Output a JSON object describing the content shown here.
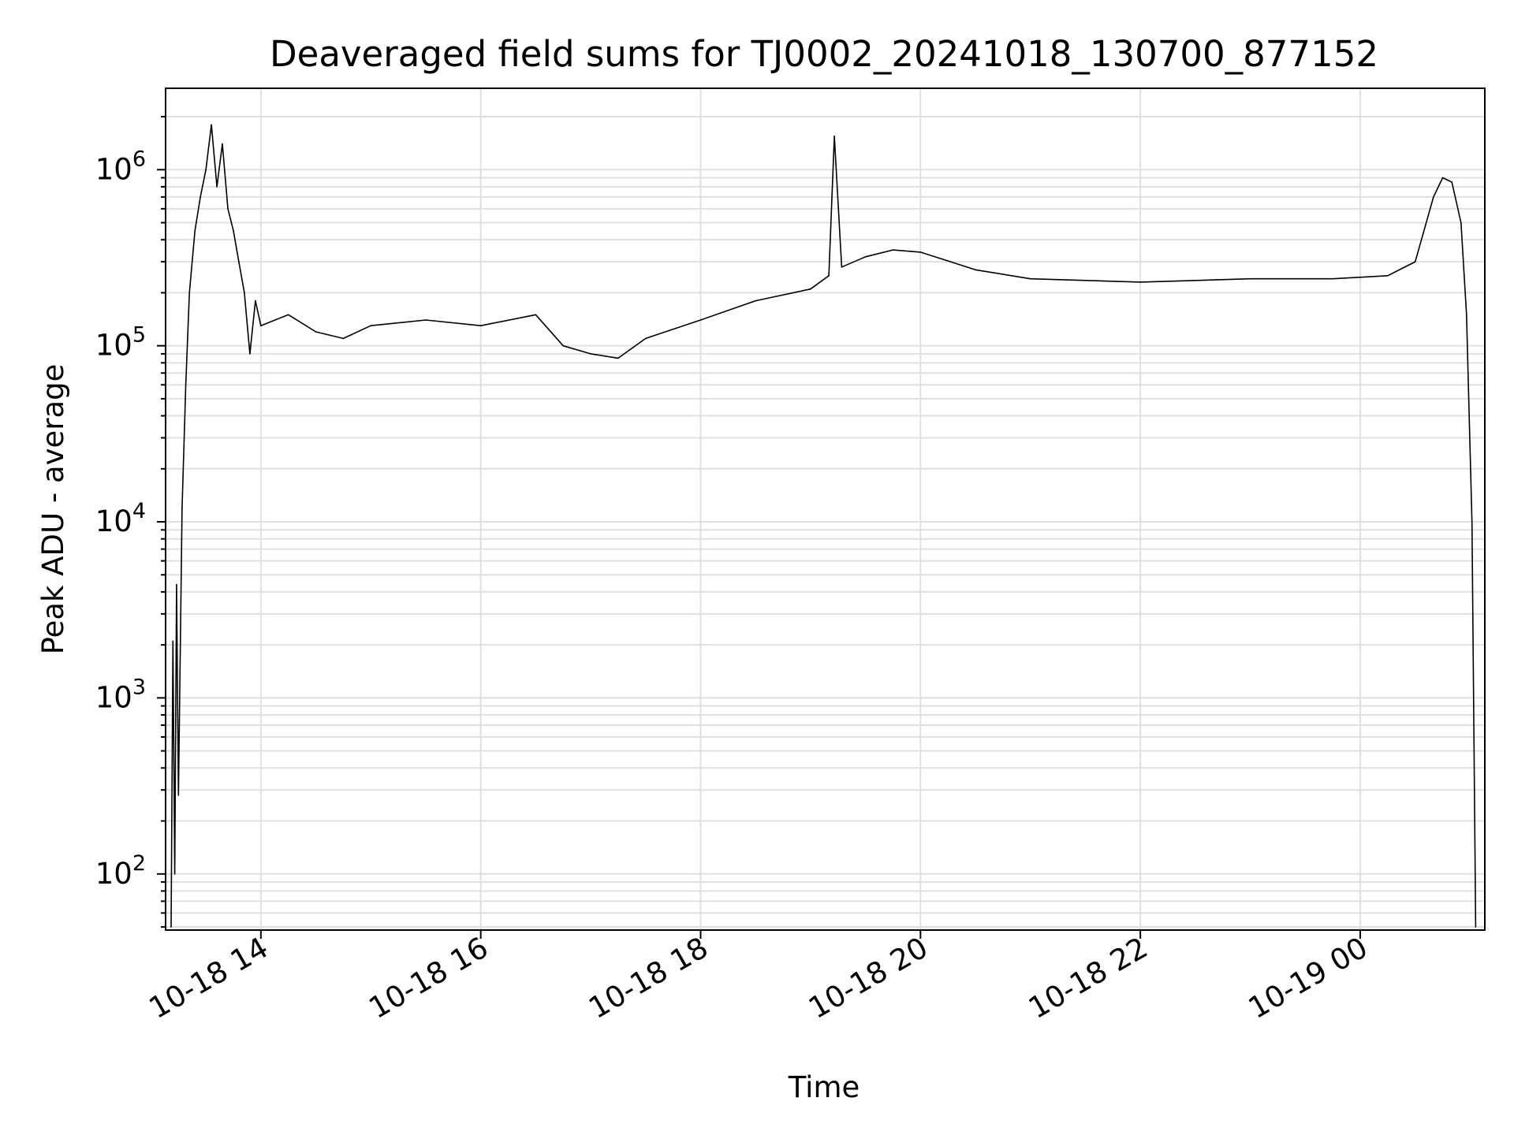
{
  "chart_data": {
    "type": "line",
    "title": "Deaveraged field sums for TJ0002_20241018_130700_877152",
    "xlabel": "Time",
    "ylabel": "Peak ADU - average",
    "yscale": "log",
    "ylim": [
      48,
      2900000
    ],
    "xlim": [
      "2024-10-18 13:08",
      "2024-10-19 01:08"
    ],
    "grid": true,
    "line_color": "#000000",
    "x_ticks": [
      {
        "value": "2024-10-18 14:00",
        "label": "10-18 14"
      },
      {
        "value": "2024-10-18 16:00",
        "label": "10-18 16"
      },
      {
        "value": "2024-10-18 18:00",
        "label": "10-18 18"
      },
      {
        "value": "2024-10-18 20:00",
        "label": "10-18 20"
      },
      {
        "value": "2024-10-18 22:00",
        "label": "10-18 22"
      },
      {
        "value": "2024-10-19 00:00",
        "label": "10-19 00"
      }
    ],
    "y_ticks": [
      {
        "value": 100,
        "base": "10",
        "exp": "2"
      },
      {
        "value": 1000,
        "base": "10",
        "exp": "3"
      },
      {
        "value": 10000,
        "base": "10",
        "exp": "4"
      },
      {
        "value": 100000,
        "base": "10",
        "exp": "5"
      },
      {
        "value": 1000000,
        "base": "10",
        "exp": "6"
      }
    ],
    "series": [
      {
        "values": [
          [
            "2024-10-18 13:11",
            50
          ],
          [
            "2024-10-18 13:12",
            2100
          ],
          [
            "2024-10-18 13:13",
            100
          ],
          [
            "2024-10-18 13:14",
            4400
          ],
          [
            "2024-10-18 13:15",
            280
          ],
          [
            "2024-10-18 13:17",
            12000
          ],
          [
            "2024-10-18 13:19",
            60000
          ],
          [
            "2024-10-18 13:21",
            200000
          ],
          [
            "2024-10-18 13:24",
            450000
          ],
          [
            "2024-10-18 13:27",
            700000
          ],
          [
            "2024-10-18 13:30",
            1000000
          ],
          [
            "2024-10-18 13:33",
            1800000
          ],
          [
            "2024-10-18 13:36",
            800000
          ],
          [
            "2024-10-18 13:39",
            1400000
          ],
          [
            "2024-10-18 13:42",
            600000
          ],
          [
            "2024-10-18 13:45",
            450000
          ],
          [
            "2024-10-18 13:48",
            300000
          ],
          [
            "2024-10-18 13:51",
            200000
          ],
          [
            "2024-10-18 13:54",
            90000
          ],
          [
            "2024-10-18 13:57",
            180000
          ],
          [
            "2024-10-18 14:00",
            130000
          ],
          [
            "2024-10-18 14:15",
            150000
          ],
          [
            "2024-10-18 14:30",
            120000
          ],
          [
            "2024-10-18 14:45",
            110000
          ],
          [
            "2024-10-18 15:00",
            130000
          ],
          [
            "2024-10-18 15:30",
            140000
          ],
          [
            "2024-10-18 16:00",
            130000
          ],
          [
            "2024-10-18 16:30",
            150000
          ],
          [
            "2024-10-18 16:45",
            100000
          ],
          [
            "2024-10-18 17:00",
            90000
          ],
          [
            "2024-10-18 17:15",
            85000
          ],
          [
            "2024-10-18 17:30",
            110000
          ],
          [
            "2024-10-18 18:00",
            140000
          ],
          [
            "2024-10-18 18:30",
            180000
          ],
          [
            "2024-10-18 19:00",
            210000
          ],
          [
            "2024-10-18 19:10",
            250000
          ],
          [
            "2024-10-18 19:13",
            1550000
          ],
          [
            "2024-10-18 19:17",
            280000
          ],
          [
            "2024-10-18 19:30",
            320000
          ],
          [
            "2024-10-18 19:45",
            350000
          ],
          [
            "2024-10-18 20:00",
            340000
          ],
          [
            "2024-10-18 20:30",
            270000
          ],
          [
            "2024-10-18 21:00",
            240000
          ],
          [
            "2024-10-18 22:00",
            230000
          ],
          [
            "2024-10-18 23:00",
            240000
          ],
          [
            "2024-10-18 23:45",
            240000
          ],
          [
            "2024-10-19 00:15",
            250000
          ],
          [
            "2024-10-19 00:30",
            300000
          ],
          [
            "2024-10-19 00:40",
            700000
          ],
          [
            "2024-10-19 00:45",
            900000
          ],
          [
            "2024-10-19 00:50",
            850000
          ],
          [
            "2024-10-19 00:55",
            500000
          ],
          [
            "2024-10-19 00:58",
            150000
          ],
          [
            "2024-10-19 01:01",
            10000
          ],
          [
            "2024-10-19 01:03",
            50
          ]
        ]
      }
    ]
  }
}
